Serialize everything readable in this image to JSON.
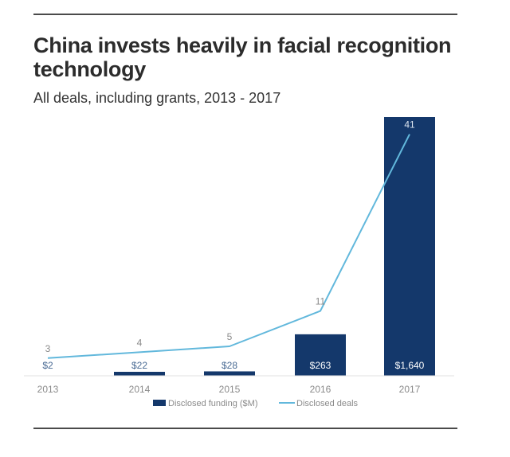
{
  "colors": {
    "bar": "#14386b",
    "line": "#62b8dc",
    "axis_text": "#8a8a8a",
    "bar_label": "#ffffff",
    "title": "#2c2c2c"
  },
  "chart_data": {
    "type": "bar",
    "title": "China invests heavily in facial recognition technology",
    "subtitle": "All deals, including grants, 2013 - 2017",
    "categories": [
      "2013",
      "2014",
      "2015",
      "2016",
      "2017"
    ],
    "series": [
      {
        "name": "Disclosed funding ($M)",
        "type": "bar",
        "values": [
          2,
          22,
          28,
          263,
          1640
        ],
        "labels": [
          "$2",
          "$22",
          "$28",
          "$263",
          "$1,640"
        ]
      },
      {
        "name": "Disclosed deals",
        "type": "line",
        "values": [
          3,
          4,
          5,
          11,
          41
        ],
        "labels": [
          "3",
          "4",
          "5",
          "11",
          "41"
        ]
      }
    ],
    "xlabel": "",
    "ylabel": "",
    "bar_ylim": [
      0,
      1640
    ],
    "line_ylim": [
      0,
      50
    ],
    "grid": false,
    "legend": "bottom"
  }
}
